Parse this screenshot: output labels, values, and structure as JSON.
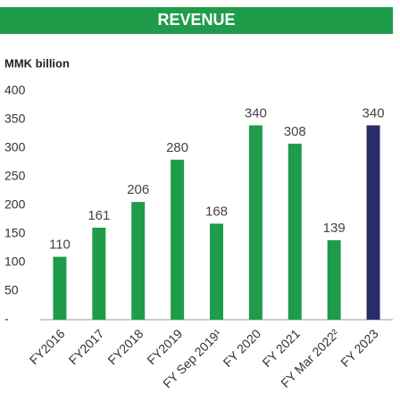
{
  "chart_data": {
    "type": "bar",
    "title": "REVENUE",
    "y_label": "MMK billion",
    "categories": [
      "FY2016",
      "FY2017",
      "FY2018",
      "FY2019",
      "FY Sep 2019¹",
      "FY 2020",
      "FY 2021",
      "FY Mar 2022²",
      "FY 2023"
    ],
    "values": [
      110,
      161,
      206,
      280,
      168,
      340,
      308,
      139,
      340
    ],
    "colors": [
      "#1f9c4a",
      "#1f9c4a",
      "#1f9c4a",
      "#1f9c4a",
      "#1f9c4a",
      "#1f9c4a",
      "#1f9c4a",
      "#1f9c4a",
      "#292d6a"
    ],
    "ylim": [
      0,
      400
    ],
    "yticks": [
      {
        "value": 0,
        "label": "-"
      },
      50,
      100,
      150,
      200,
      250,
      300,
      350,
      400
    ],
    "grid": false
  }
}
